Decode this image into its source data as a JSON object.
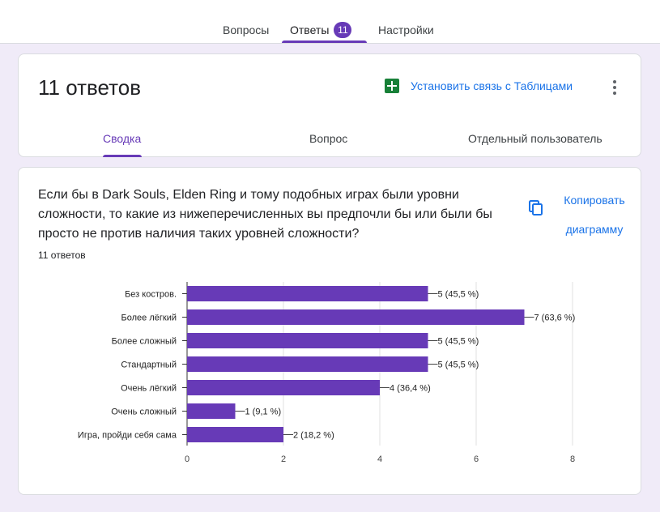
{
  "top_tabs": [
    {
      "label": "Вопросы"
    },
    {
      "label": "Ответы",
      "badge": "11"
    },
    {
      "label": "Настройки"
    }
  ],
  "summary": {
    "title": "11 ответов",
    "sheets_link": "Установить связь с Таблицами",
    "sub_tabs": [
      "Сводка",
      "Вопрос",
      "Отдельный пользователь"
    ]
  },
  "question_card": {
    "question": "Если бы в Dark Souls, Elden Ring и тому подобных играх были уровни сложности, то какие из нижеперечисленных вы предпочли бы или были бы просто не против наличия таких уровней сложности?",
    "responses": "11 ответов",
    "copy_line1": "Копировать",
    "copy_line2": "диаграмму"
  },
  "colors": {
    "accent": "#673ab7",
    "bar": "#673ab7",
    "link": "#1a73e8",
    "sheets": "#188038"
  },
  "chart_data": {
    "type": "bar",
    "orientation": "horizontal",
    "categories": [
      "Без костров.",
      "Более лёгкий",
      "Более сложный",
      "Стандартный",
      "Очень лёгкий",
      "Очень сложный",
      "Игра, пройди себя сама"
    ],
    "values": [
      5,
      7,
      5,
      5,
      4,
      1,
      2
    ],
    "data_labels": [
      "5 (45,5 %)",
      "7 (63,6 %)",
      "5 (45,5 %)",
      "5 (45,5 %)",
      "4 (36,4 %)",
      "1 (9,1 %)",
      "2 (18,2 %)"
    ],
    "xlim": [
      0,
      8
    ],
    "xticks": [
      0,
      2,
      4,
      6,
      8
    ],
    "grid": true
  }
}
